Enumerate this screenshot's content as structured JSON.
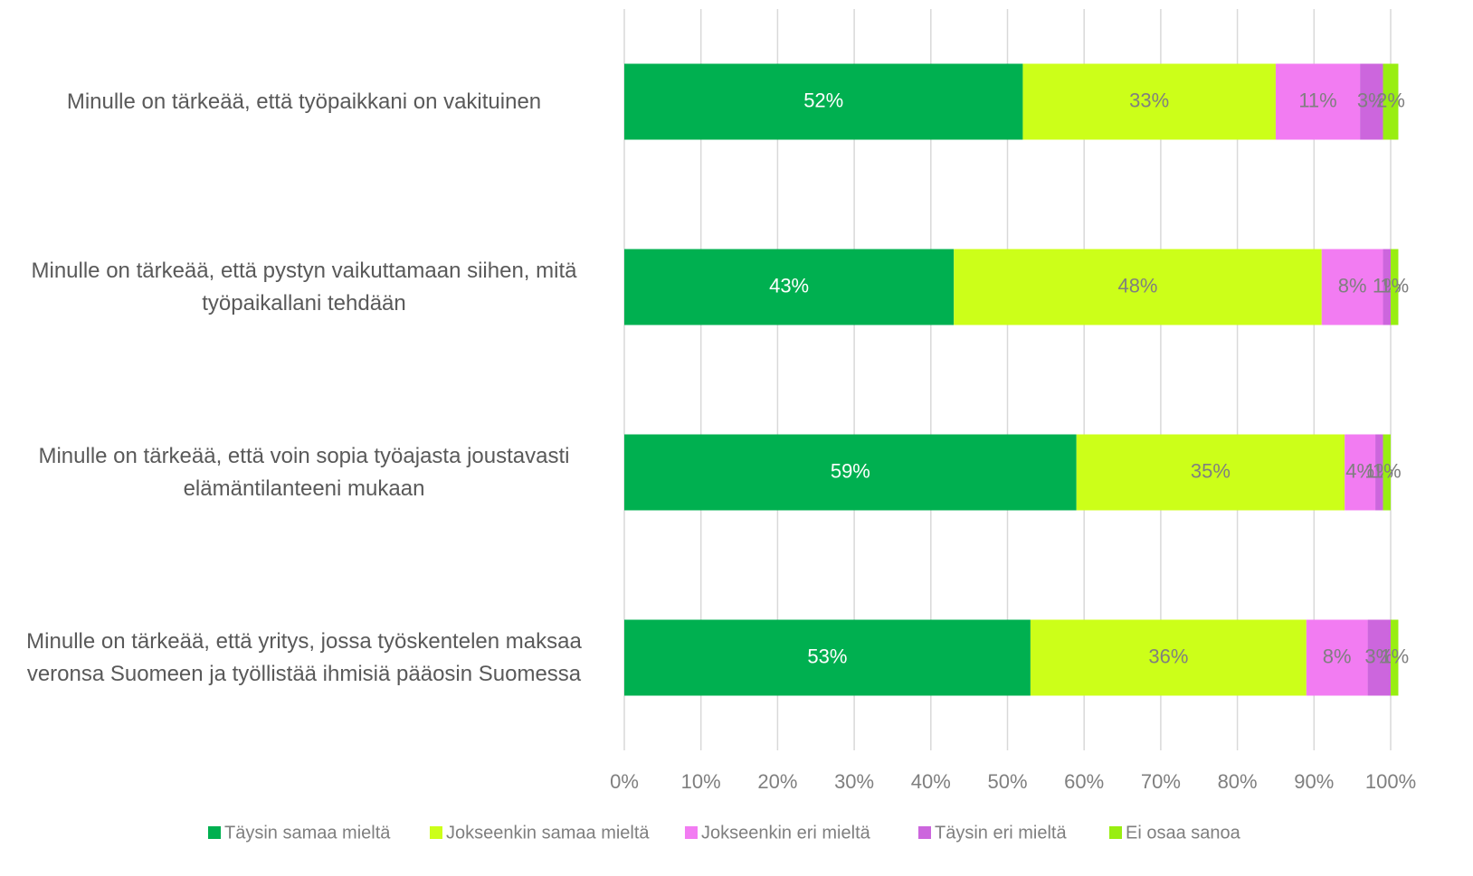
{
  "chart_data": {
    "type": "stacked_bar_horizontal",
    "categories": [
      "Minulle on tärkeää, että työpaikkani on vakituinen",
      "Minulle on tärkeää, että pystyn vaikuttamaan siihen, mitä työpaikallani tehdään",
      "Minulle on tärkeää, että voin sopia työajasta joustavasti elämäntilanteeni mukaan",
      "Minulle on tärkeää, että yritys, jossa työskentelen maksaa veronsa Suomeen ja työllistää ihmisiä pääosin Suomessa"
    ],
    "series": [
      {
        "name": "Täysin samaa mieltä",
        "color": "#00b050",
        "label_color": "#ffffff",
        "values": [
          52,
          43,
          59,
          53
        ],
        "value_labels": [
          "52%",
          "43%",
          "59%",
          "53%"
        ]
      },
      {
        "name": "Jokseenkin samaa mieltä",
        "color": "#ccff19",
        "label_color": "#7f7f7f",
        "values": [
          33,
          48,
          35,
          36
        ],
        "value_labels": [
          "33%",
          "48%",
          "35%",
          "36%"
        ]
      },
      {
        "name": "Jokseenkin eri mieltä",
        "color": "#f27cf2",
        "label_color": "#7f7f7f",
        "values": [
          11,
          8,
          4,
          8
        ],
        "value_labels": [
          "11%",
          "8%",
          "4%",
          "8%"
        ]
      },
      {
        "name": "Täysin eri mieltä",
        "color": "#cc66dd",
        "label_color": "#7f7f7f",
        "values": [
          3,
          1,
          1,
          3
        ],
        "value_labels": [
          "3%",
          "1%",
          "1%",
          "3%"
        ]
      },
      {
        "name": "Ei osaa sanoa",
        "color": "#99ee11",
        "label_color": "#7f7f7f",
        "values": [
          2,
          1,
          1,
          1
        ],
        "value_labels": [
          "2%",
          "1%",
          "1%",
          "1%"
        ]
      }
    ],
    "xlim": [
      0,
      100
    ],
    "xticks": [
      {
        "value": 0,
        "label": "0%"
      },
      {
        "value": 10,
        "label": "10%"
      },
      {
        "value": 20,
        "label": "20%"
      },
      {
        "value": 30,
        "label": "30%"
      },
      {
        "value": 40,
        "label": "40%"
      },
      {
        "value": 50,
        "label": "50%"
      },
      {
        "value": 60,
        "label": "60%"
      },
      {
        "value": 70,
        "label": "70%"
      },
      {
        "value": 80,
        "label": "80%"
      },
      {
        "value": 90,
        "label": "90%"
      },
      {
        "value": 100,
        "label": "100%"
      }
    ],
    "grid": true,
    "legend": "bottom"
  }
}
